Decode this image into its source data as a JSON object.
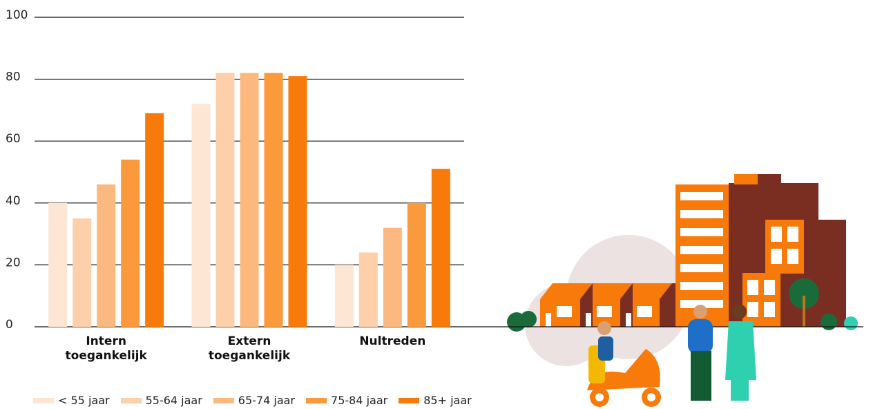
{
  "chart_data": {
    "type": "bar",
    "categories": [
      "Intern toegankelijk",
      "Extern toegankelijk",
      "Nultreden"
    ],
    "series": [
      {
        "name": "< 55 jaar",
        "color": "#fde6d3",
        "values": [
          40,
          72,
          20
        ]
      },
      {
        "name": "55-64 jaar",
        "color": "#fdd0ab",
        "values": [
          35,
          82,
          24
        ]
      },
      {
        "name": "65-74 jaar",
        "color": "#fcb97f",
        "values": [
          46,
          82,
          32
        ]
      },
      {
        "name": "75-84 jaar",
        "color": "#fb9a3d",
        "values": [
          54,
          82,
          40
        ]
      },
      {
        "name": "85+ jaar",
        "color": "#f77a0a",
        "values": [
          69,
          81,
          51
        ]
      }
    ],
    "ylim": [
      0,
      100
    ],
    "yticks": [
      0,
      20,
      40,
      60,
      80,
      100
    ],
    "grid": true,
    "legend": "bottom"
  }
}
